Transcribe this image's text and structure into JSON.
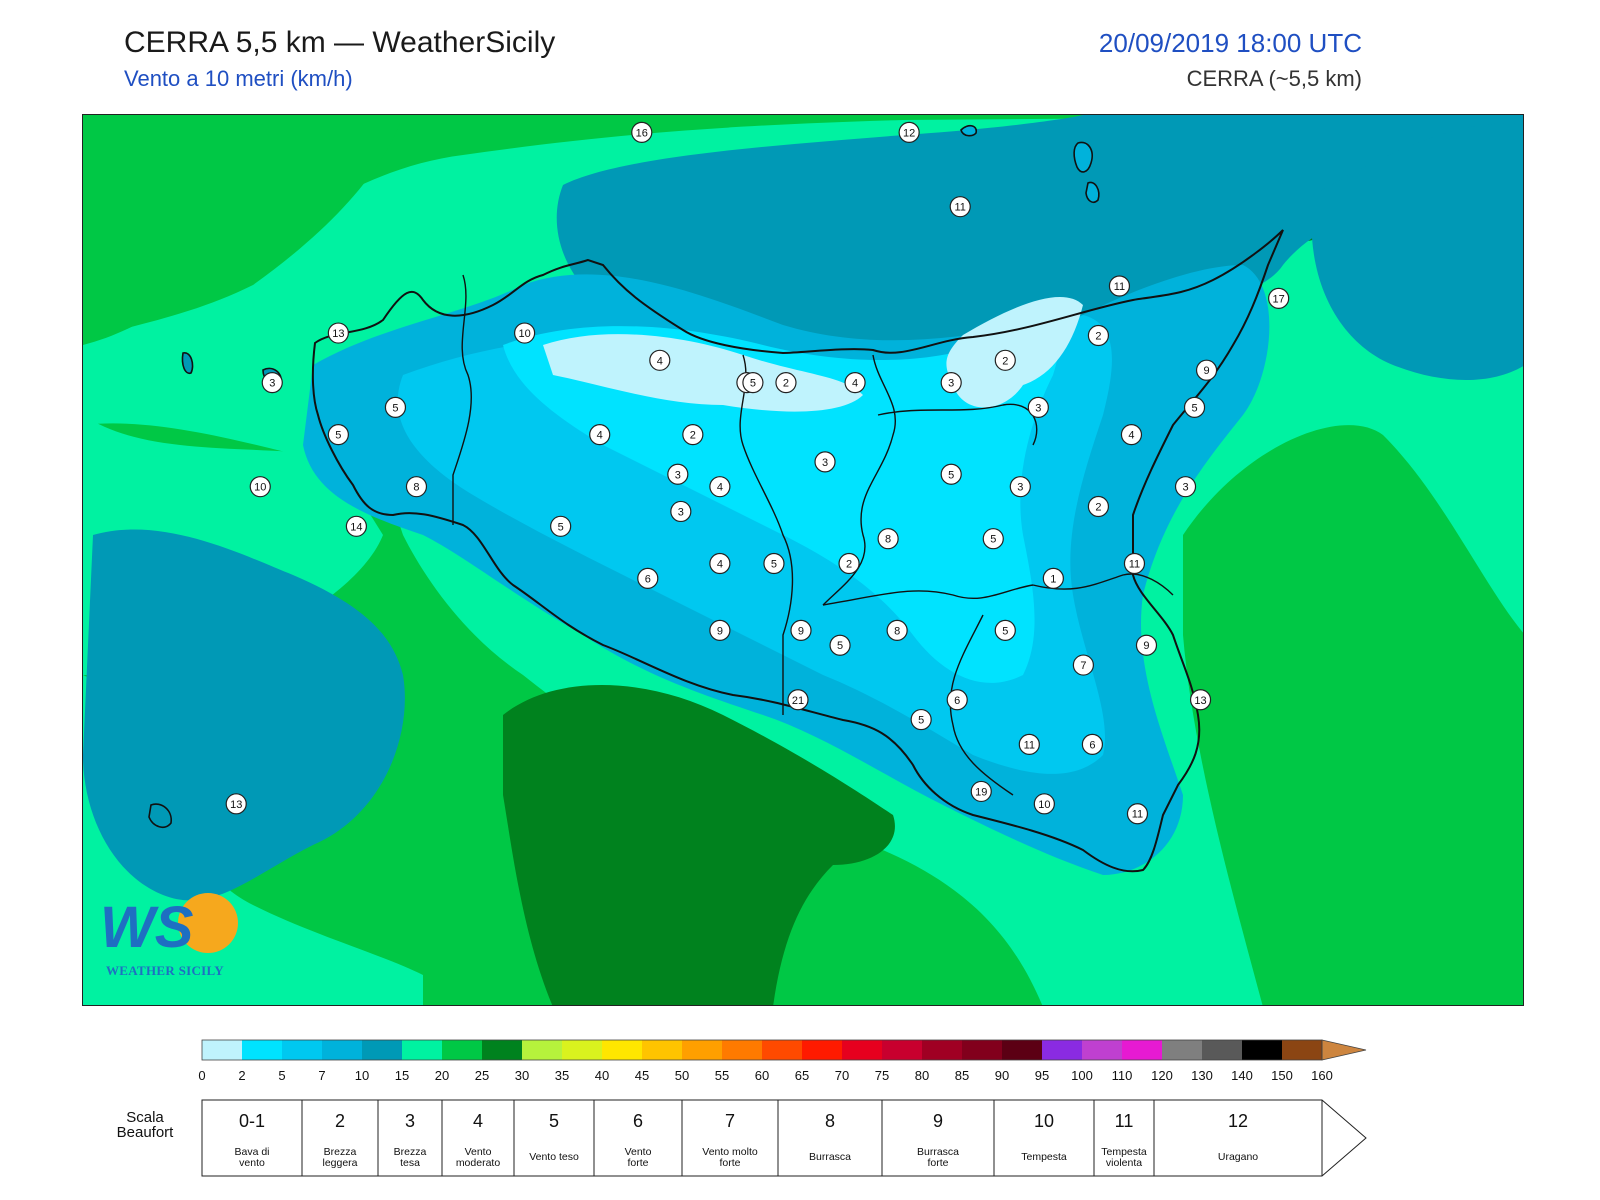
{
  "header": {
    "title": "CERRA 5,5 km — WeatherSicily",
    "subtitle": "Vento a 10 metri (km/h)",
    "datetime": "20/09/2019 18:00 UTC",
    "model": "CERRA (~5,5 km)"
  },
  "logo": {
    "text": "WEATHER SICILY",
    "letters": "WS"
  },
  "colors": {
    "land_border": "#111111",
    "wind_0_2": "#bff3fd",
    "wind_2_5": "#00e3ff",
    "wind_5_7": "#00c8f0",
    "wind_7_10": "#00b2db",
    "wind_10_15": "#0099b6",
    "wind_15_20": "#00f2a1",
    "wind_20_25": "#00c845",
    "wind_25_30": "#00821e"
  },
  "stations": [
    {
      "v": "16",
      "lon": 12.86,
      "lat": 39.13
    },
    {
      "v": "12",
      "lon": 13.75,
      "lat": 39.13
    },
    {
      "v": "11",
      "lon": 13.92,
      "lat": 38.83
    },
    {
      "v": "11",
      "lon": 14.45,
      "lat": 38.51
    },
    {
      "v": "17",
      "lon": 14.98,
      "lat": 38.46
    },
    {
      "v": "13",
      "lon": 11.85,
      "lat": 38.32
    },
    {
      "v": "10",
      "lon": 12.47,
      "lat": 38.32
    },
    {
      "v": "4",
      "lon": 12.92,
      "lat": 38.21
    },
    {
      "v": "2",
      "lon": 14.07,
      "lat": 38.21
    },
    {
      "v": "2",
      "lon": 14.38,
      "lat": 38.31
    },
    {
      "v": "9",
      "lon": 14.74,
      "lat": 38.17
    },
    {
      "v": "3",
      "lon": 11.63,
      "lat": 38.12
    },
    {
      "v": "2",
      "lon": 13.34,
      "lat": 38.12
    },
    {
      "v": "3",
      "lon": 13.89,
      "lat": 38.12
    },
    {
      "v": "5",
      "lon": 13.21,
      "lat": 38.12
    },
    {
      "v": "5",
      "lon": 13.23,
      "lat": 38.12
    },
    {
      "v": "4",
      "lon": 13.57,
      "lat": 38.12
    },
    {
      "v": "5",
      "lon": 12.04,
      "lat": 38.02
    },
    {
      "v": "3",
      "lon": 14.18,
      "lat": 38.02
    },
    {
      "v": "5",
      "lon": 14.7,
      "lat": 38.02
    },
    {
      "v": "5",
      "lon": 11.85,
      "lat": 37.91
    },
    {
      "v": "4",
      "lon": 12.72,
      "lat": 37.91
    },
    {
      "v": "2",
      "lon": 13.03,
      "lat": 37.91
    },
    {
      "v": "4",
      "lon": 14.49,
      "lat": 37.91
    },
    {
      "v": "3",
      "lon": 13.47,
      "lat": 37.8
    },
    {
      "v": "3",
      "lon": 12.98,
      "lat": 37.75
    },
    {
      "v": "5",
      "lon": 13.89,
      "lat": 37.75
    },
    {
      "v": "10",
      "lon": 11.59,
      "lat": 37.7
    },
    {
      "v": "8",
      "lon": 12.11,
      "lat": 37.7
    },
    {
      "v": "4",
      "lon": 13.12,
      "lat": 37.7
    },
    {
      "v": "3",
      "lon": 14.12,
      "lat": 37.7
    },
    {
      "v": "3",
      "lon": 14.67,
      "lat": 37.7
    },
    {
      "v": "2",
      "lon": 14.38,
      "lat": 37.62
    },
    {
      "v": "3",
      "lon": 12.99,
      "lat": 37.6
    },
    {
      "v": "14",
      "lon": 11.91,
      "lat": 37.54
    },
    {
      "v": "5",
      "lon": 12.59,
      "lat": 37.54
    },
    {
      "v": "8",
      "lon": 13.68,
      "lat": 37.49
    },
    {
      "v": "5",
      "lon": 14.03,
      "lat": 37.49
    },
    {
      "v": "4",
      "lon": 13.12,
      "lat": 37.39
    },
    {
      "v": "5",
      "lon": 13.3,
      "lat": 37.39
    },
    {
      "v": "2",
      "lon": 13.55,
      "lat": 37.39
    },
    {
      "v": "11",
      "lon": 14.5,
      "lat": 37.39
    },
    {
      "v": "6",
      "lon": 12.88,
      "lat": 37.33
    },
    {
      "v": "1",
      "lon": 14.23,
      "lat": 37.33
    },
    {
      "v": "9",
      "lon": 13.12,
      "lat": 37.12
    },
    {
      "v": "9",
      "lon": 13.39,
      "lat": 37.12
    },
    {
      "v": "8",
      "lon": 13.71,
      "lat": 37.12
    },
    {
      "v": "5",
      "lon": 14.07,
      "lat": 37.12
    },
    {
      "v": "5",
      "lon": 13.52,
      "lat": 37.06
    },
    {
      "v": "9",
      "lon": 14.54,
      "lat": 37.06
    },
    {
      "v": "7",
      "lon": 14.33,
      "lat": 36.98
    },
    {
      "v": "21",
      "lon": 13.38,
      "lat": 36.84
    },
    {
      "v": "6",
      "lon": 13.91,
      "lat": 36.84
    },
    {
      "v": "13",
      "lon": 14.72,
      "lat": 36.84
    },
    {
      "v": "5",
      "lon": 13.79,
      "lat": 36.76
    },
    {
      "v": "11",
      "lon": 14.15,
      "lat": 36.66
    },
    {
      "v": "6",
      "lon": 14.36,
      "lat": 36.66
    },
    {
      "v": "19",
      "lon": 13.99,
      "lat": 36.47
    },
    {
      "v": "10",
      "lon": 14.2,
      "lat": 36.42
    },
    {
      "v": "11",
      "lon": 14.51,
      "lat": 36.38
    },
    {
      "v": "13",
      "lon": 11.51,
      "lat": 36.42
    }
  ],
  "legend": {
    "ticks": [
      "0",
      "2",
      "5",
      "7",
      "10",
      "15",
      "20",
      "25",
      "30",
      "35",
      "40",
      "45",
      "50",
      "55",
      "60",
      "65",
      "70",
      "75",
      "80",
      "85",
      "90",
      "95",
      "100",
      "110",
      "120",
      "130",
      "140",
      "150",
      "160"
    ],
    "colors": [
      "#bff3fd",
      "#00e3ff",
      "#00c8f0",
      "#00b2db",
      "#0099b6",
      "#00f2a1",
      "#00c845",
      "#00821e",
      "#b6f23c",
      "#d9f21e",
      "#ffe600",
      "#ffc400",
      "#ff9f00",
      "#ff7a00",
      "#ff4a00",
      "#ff1a00",
      "#e6001e",
      "#c8002e",
      "#a00023",
      "#82001c",
      "#5c0014",
      "#8a2be2",
      "#bf40d0",
      "#e61ad2",
      "#7f7f7f",
      "#595959",
      "#000000",
      "#8b4513",
      "#cd853f"
    ]
  },
  "beaufort": {
    "label": "Scala\nBeaufort",
    "cells": [
      {
        "num": "0-1",
        "desc": "Bava di\nvento"
      },
      {
        "num": "2",
        "desc": "Brezza\nleggera"
      },
      {
        "num": "3",
        "desc": "Brezza\ntesa"
      },
      {
        "num": "4",
        "desc": "Vento\nmoderato"
      },
      {
        "num": "5",
        "desc": "Vento teso"
      },
      {
        "num": "6",
        "desc": "Vento\nforte"
      },
      {
        "num": "7",
        "desc": "Vento molto\nforte"
      },
      {
        "num": "8",
        "desc": "Burrasca"
      },
      {
        "num": "9",
        "desc": "Burrasca\nforte"
      },
      {
        "num": "10",
        "desc": "Tempesta"
      },
      {
        "num": "11",
        "desc": "Tempesta\nviolenta"
      },
      {
        "num": "12",
        "desc": "Uragano"
      }
    ]
  }
}
